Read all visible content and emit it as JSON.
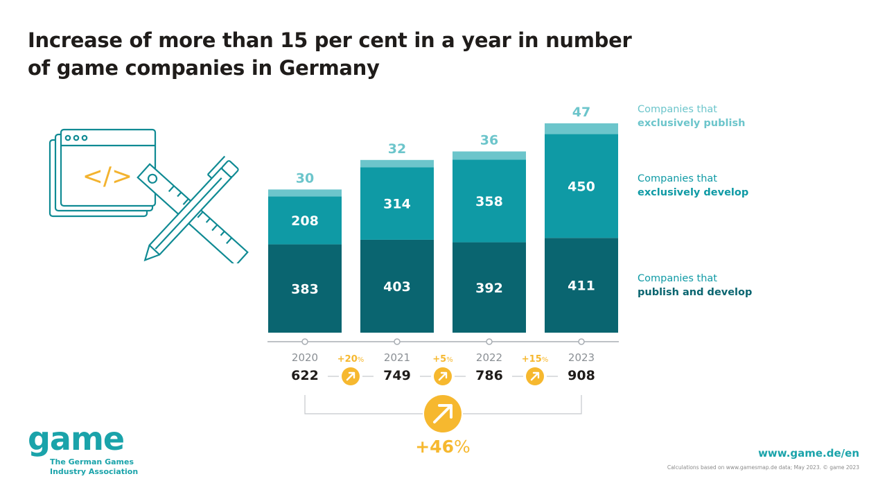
{
  "title": {
    "line1": "Increase of more than 15 per cent in a year in number",
    "line2": "of game companies in Germany"
  },
  "colors": {
    "publish": "#6cc5cb",
    "develop": "#0f9aa5",
    "both": "#0a6570",
    "accent": "#f6b82f",
    "axis": "#a8adb3",
    "text_dark": "#1f1c1a",
    "year_text": "#8a8f94"
  },
  "chart_data": {
    "type": "bar",
    "stacked": true,
    "categories": [
      "2020",
      "2021",
      "2022",
      "2023"
    ],
    "series": [
      {
        "name": "Companies that publish and develop",
        "values": [
          383,
          403,
          392,
          411
        ]
      },
      {
        "name": "Companies that exclusively develop",
        "values": [
          208,
          314,
          358,
          450
        ]
      },
      {
        "name": "Companies that exclusively publish",
        "values": [
          30,
          32,
          36,
          47
        ]
      }
    ],
    "totals": [
      622,
      749,
      786,
      908
    ],
    "year_changes": [
      "+20",
      "+5",
      "+15"
    ],
    "overall_change": "+46",
    "percent_sign": "%"
  },
  "legend": {
    "publish": {
      "line1": "Companies that",
      "line2": "exclusively publish"
    },
    "develop": {
      "line1": "Companies that",
      "line2": "exclusively develop"
    },
    "both": {
      "line1": "Companies that",
      "line2": "publish and develop"
    }
  },
  "illustration": {
    "code_symbol": "</>"
  },
  "logo": {
    "word": "game",
    "sub1": "The German Games",
    "sub2": "Industry Association"
  },
  "footer": {
    "url": "www.game.de/en",
    "source": "Calculations based on www.gamesmap.de data; May 2023. © game 2023"
  }
}
